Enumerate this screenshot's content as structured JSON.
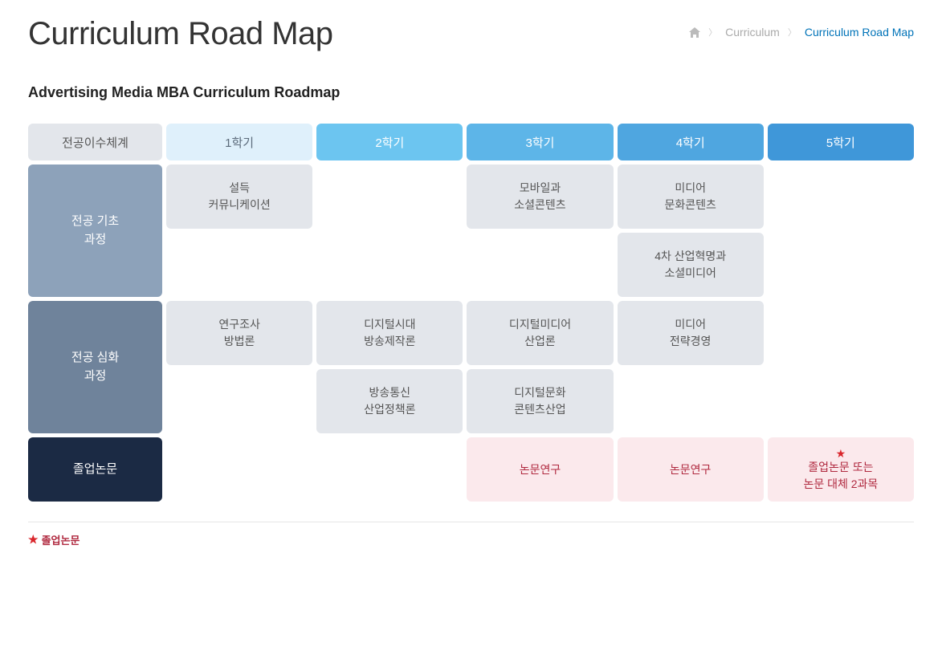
{
  "page": {
    "title": "Curriculum Road Map",
    "subtitle": "Advertising Media MBA Curriculum Roadmap"
  },
  "breadcrumb": {
    "home_icon": "home",
    "items": [
      "Curriculum",
      "Curriculum Road Map"
    ]
  },
  "colors": {
    "header_bg": [
      "#e3e6eb",
      "#dff0fb",
      "#6cc5f0",
      "#5db5e8",
      "#4fa6e0",
      "#3f97d9"
    ],
    "header_fg": [
      "#555555",
      "#5b6a7a",
      "#ffffff",
      "#ffffff",
      "#ffffff",
      "#ffffff"
    ],
    "row_label_bg": [
      "#8da2ba",
      "#6f839b",
      "#1b2a44"
    ],
    "cell_bg": "#e3e6eb",
    "cell_fg": "#555555",
    "thesis_cell_bg": "#fbe9ec",
    "thesis_fg": "#b0293f"
  },
  "semesters": [
    "전공이수체계",
    "1학기",
    "2학기",
    "3학기",
    "4학기",
    "5학기"
  ],
  "rows": [
    {
      "label": "전공 기초\n과정",
      "sub_rows": [
        [
          "설득\n커뮤니케이션",
          "",
          "모바일과\n소셜콘텐츠",
          "미디어\n문화콘텐츠",
          ""
        ],
        [
          "",
          "",
          "",
          "4차 산업혁명과\n소셜미디어",
          ""
        ]
      ]
    },
    {
      "label": "전공 심화\n과정",
      "sub_rows": [
        [
          "연구조사\n방법론",
          "디지털시대\n방송제작론",
          "디지털미디어\n산업론",
          "미디어\n전략경영",
          ""
        ],
        [
          "",
          "방송통신\n산업정책론",
          "디지털문화\n콘텐츠산업",
          "",
          ""
        ]
      ]
    },
    {
      "label": "졸업논문",
      "thesis": true,
      "sub_rows": [
        [
          "",
          "",
          "논문연구",
          "논문연구",
          "졸업논문 또는\n논문 대체 2과목"
        ]
      ],
      "star_last": true
    }
  ],
  "legend": "졸업논문"
}
